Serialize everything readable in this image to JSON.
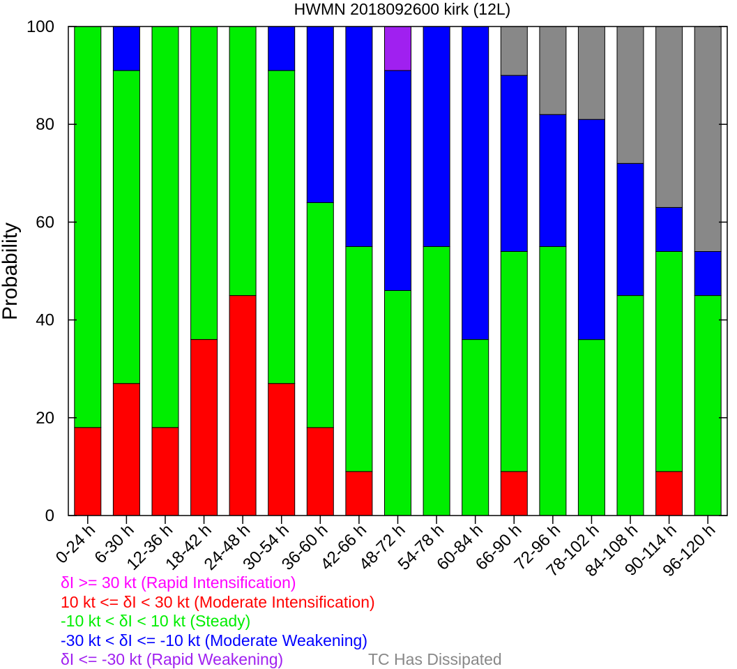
{
  "chart_data": {
    "type": "bar",
    "stacked": true,
    "title": "HWMN 2018092600 kirk (12L)",
    "ylabel": "Probability",
    "ylim": [
      0,
      100
    ],
    "yticks": [
      "0",
      "20",
      "40",
      "60",
      "80",
      "100"
    ],
    "categories": [
      "0-24 h",
      "6-30 h",
      "12-36 h",
      "18-42 h",
      "24-48 h",
      "30-54 h",
      "36-60 h",
      "42-66 h",
      "48-72 h",
      "54-78 h",
      "60-84 h",
      "66-90 h",
      "72-96 h",
      "78-102 h",
      "84-108 h",
      "90-114 h",
      "96-120 h"
    ],
    "series": [
      {
        "name": "δI >= 30 kt (Rapid Intensification)",
        "color": "#ff00ff",
        "values": [
          0,
          0,
          0,
          0,
          0,
          0,
          0,
          0,
          0,
          0,
          0,
          0,
          0,
          0,
          0,
          0,
          0
        ]
      },
      {
        "name": "10 kt <= δI < 30 kt (Moderate Intensification)",
        "color": "#ff0000",
        "values": [
          18,
          27,
          18,
          36,
          45,
          27,
          18,
          9,
          0,
          0,
          0,
          9,
          0,
          0,
          0,
          9,
          0
        ]
      },
      {
        "name": "-10 kt < δI < 10 kt (Steady)",
        "color": "#00ee00",
        "values": [
          82,
          64,
          82,
          64,
          55,
          64,
          46,
          46,
          46,
          55,
          36,
          45,
          55,
          36,
          45,
          45,
          45
        ]
      },
      {
        "name": "-30 kt < δI <= -10 kt (Moderate Weakening)",
        "color": "#0000ff",
        "values": [
          0,
          9,
          0,
          0,
          0,
          9,
          36,
          45,
          45,
          45,
          64,
          36,
          27,
          45,
          27,
          9,
          9
        ]
      },
      {
        "name": "δI <= -30 kt (Rapid Weakening)",
        "color": "#a020f0",
        "values": [
          0,
          0,
          0,
          0,
          0,
          0,
          0,
          0,
          9,
          0,
          0,
          0,
          0,
          0,
          0,
          0,
          0
        ]
      },
      {
        "name": "TC Has Dissipated",
        "color": "#888888",
        "values": [
          0,
          0,
          0,
          0,
          0,
          0,
          0,
          0,
          0,
          0,
          0,
          10,
          18,
          19,
          28,
          37,
          46
        ]
      }
    ],
    "grid": false,
    "legend_position": "bottom-left"
  }
}
